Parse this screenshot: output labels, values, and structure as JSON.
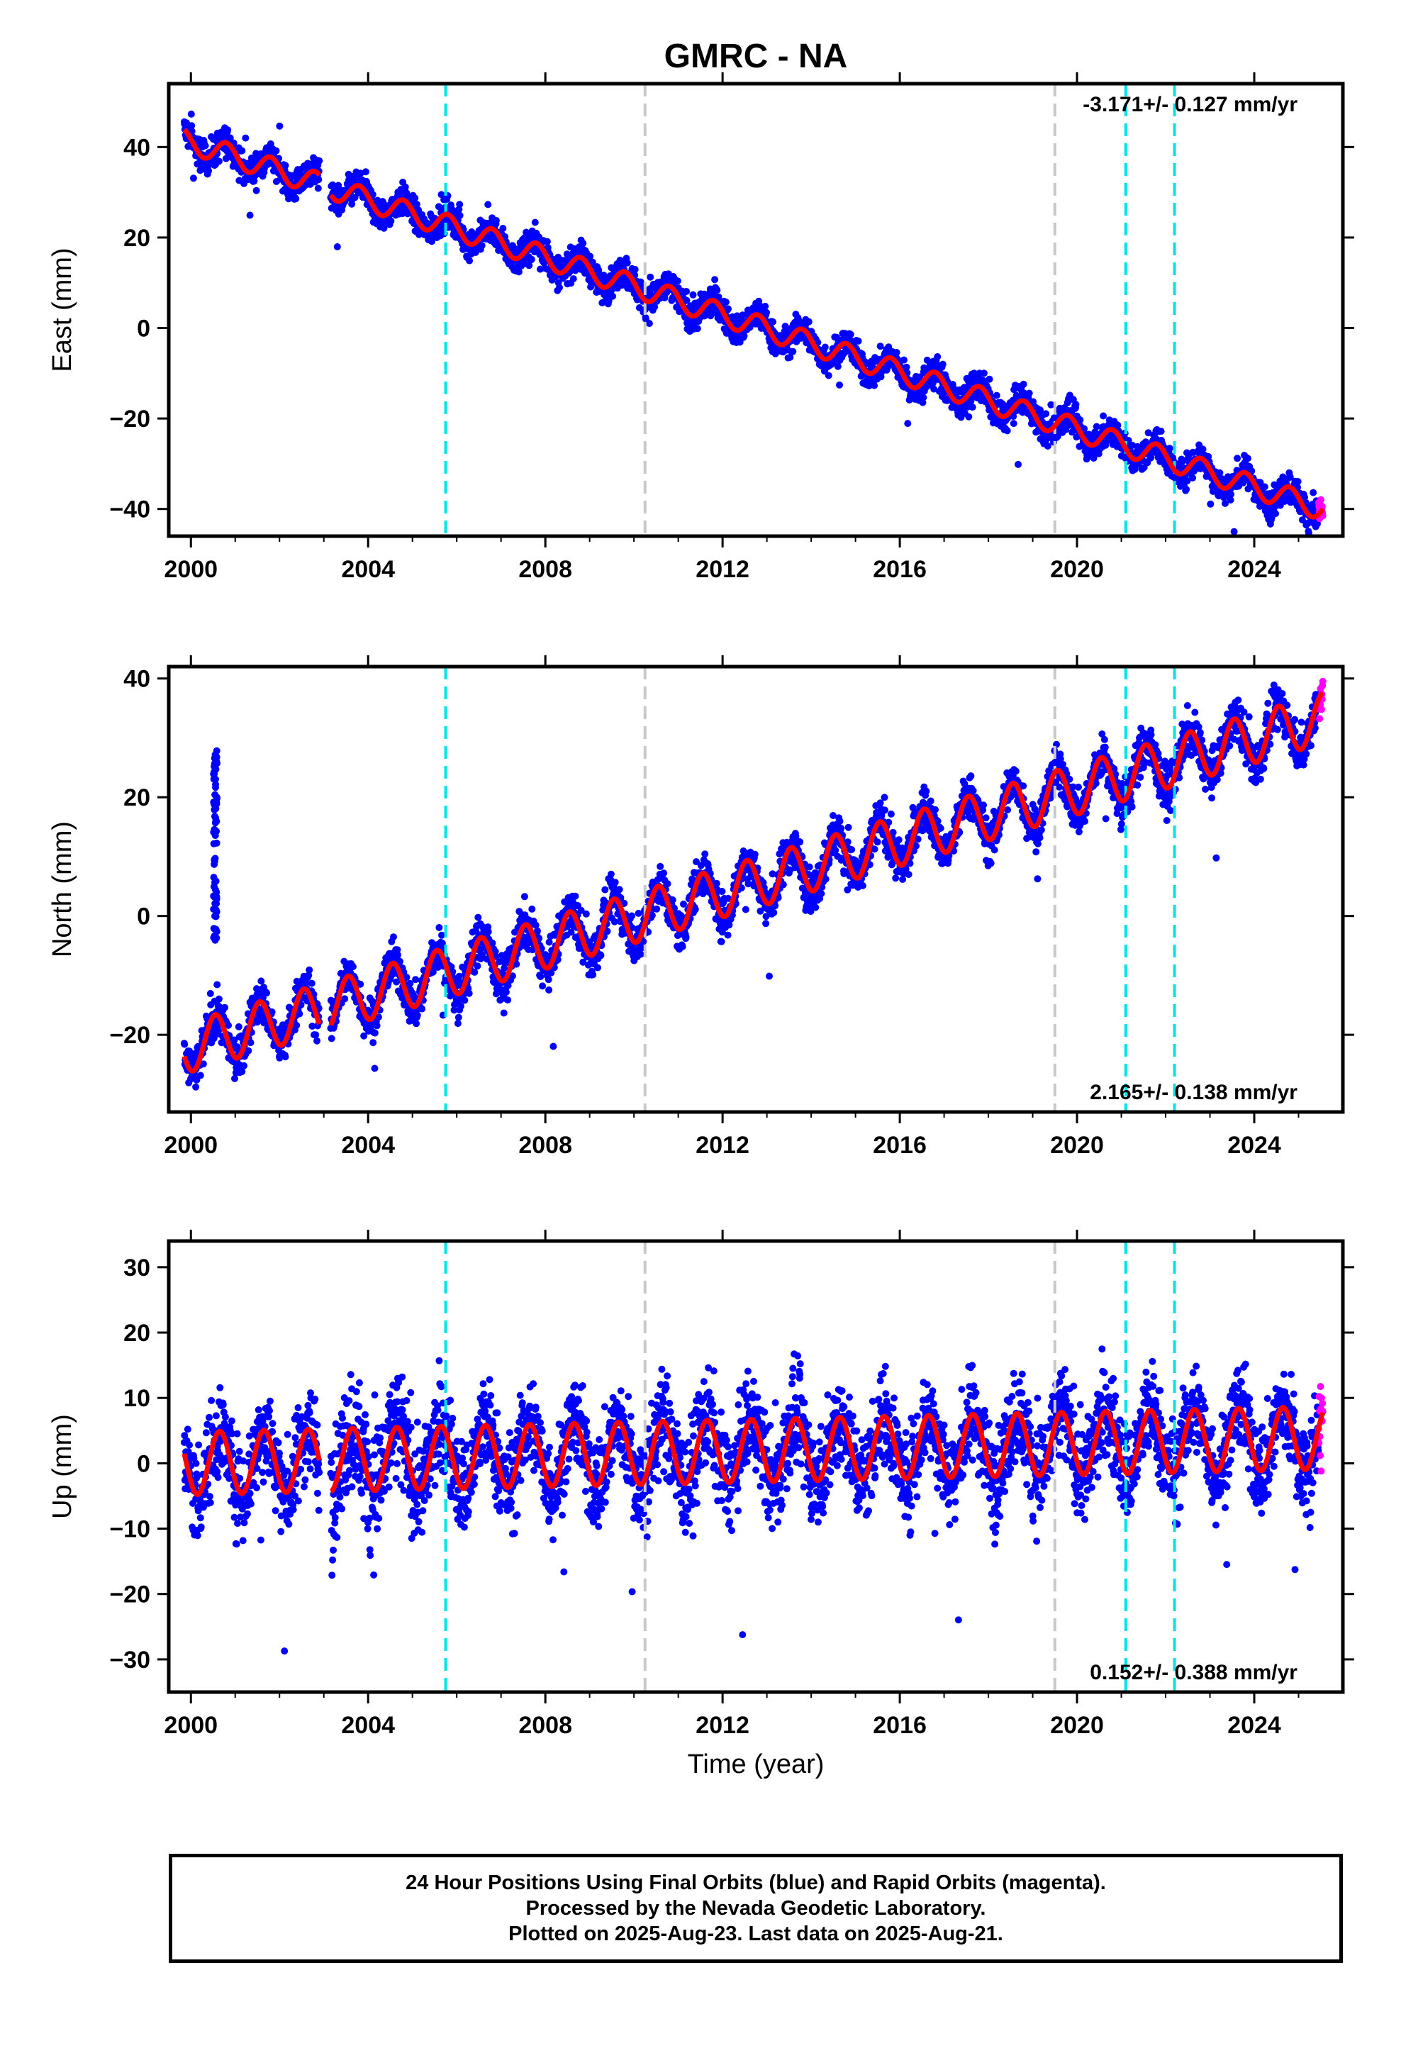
{
  "title": "GMRC - NA",
  "xlabel": "Time (year)",
  "x_ticks": [
    "2000",
    "2004",
    "2008",
    "2012",
    "2016",
    "2020",
    "2024"
  ],
  "colors": {
    "final_orbits": "#0000ff",
    "rapid_orbits": "#ff00ff",
    "model_fit": "#ff0000",
    "event_cyan": "#00e5e5",
    "event_gray": "#c8c8c8"
  },
  "event_lines": [
    {
      "year": 2005.75,
      "color": "cyan"
    },
    {
      "year": 2010.25,
      "color": "gray"
    },
    {
      "year": 2019.5,
      "color": "gray"
    },
    {
      "year": 2021.1,
      "color": "cyan"
    },
    {
      "year": 2022.2,
      "color": "cyan"
    }
  ],
  "chart_data": [
    {
      "type": "scatter",
      "component": "east",
      "ylabel": "East (mm)",
      "rate": "-3.171+/- 0.127 mm/yr",
      "xlim": [
        1999.5,
        2026.0
      ],
      "ylim": [
        -46,
        54
      ],
      "y_ticks": [
        "40",
        "20",
        "0",
        "−20",
        "−40"
      ],
      "y_tick_values": [
        40,
        20,
        0,
        -20,
        -40
      ],
      "data_start": 1999.85,
      "data_end": 2025.55,
      "rapid_start": 2025.45,
      "gaps": [
        [
          2002.9,
          2003.15
        ]
      ],
      "model": {
        "ref_year": 2000.0,
        "offset": 41.0,
        "trend": -3.171,
        "annual_amp": 2.5,
        "phase": 0.55
      },
      "fit_end": 2025.55,
      "scatter_spread": 2.4
    },
    {
      "type": "scatter",
      "component": "north",
      "ylabel": "North (mm)",
      "rate": "2.165+/- 0.138 mm/yr",
      "xlim": [
        1999.5,
        2026.0
      ],
      "ylim": [
        -33,
        42
      ],
      "y_ticks": [
        "40",
        "20",
        "0",
        "−20"
      ],
      "y_tick_values": [
        40,
        20,
        0,
        -20
      ],
      "data_start": 1999.85,
      "data_end": 2025.55,
      "rapid_start": 2025.45,
      "gaps": [
        [
          2002.9,
          2003.15
        ]
      ],
      "model": {
        "ref_year": 2000.0,
        "offset": -22.0,
        "trend": 2.165,
        "annual_amp": 4.2,
        "phase": 0.3
      },
      "fit_end": 2025.55,
      "scatter_spread": 2.6,
      "outlier_burst": {
        "x": 2000.55,
        "y_min": -5,
        "y_max": 28
      }
    },
    {
      "type": "scatter",
      "component": "up",
      "ylabel": "Up (mm)",
      "rate": "0.152+/- 0.388 mm/yr",
      "xlim": [
        1999.5,
        2026.0
      ],
      "ylim": [
        -35,
        34
      ],
      "y_ticks": [
        "30",
        "20",
        "10",
        "0",
        "−10",
        "−20",
        "−30"
      ],
      "y_tick_values": [
        30,
        20,
        10,
        0,
        -10,
        -20,
        -30
      ],
      "data_start": 1999.85,
      "data_end": 2025.55,
      "rapid_start": 2025.45,
      "gaps": [
        [
          2002.9,
          2003.15
        ]
      ],
      "model": {
        "ref_year": 2000.0,
        "offset": 0.0,
        "trend": 0.152,
        "annual_amp": 4.8,
        "phase": 0.4
      },
      "fit_end": 2025.55,
      "scatter_spread": 5.2
    }
  ],
  "footer": {
    "line1": "24 Hour Positions Using Final Orbits (blue) and Rapid Orbits (magenta).",
    "line2": "Processed by the Nevada Geodetic Laboratory.",
    "line3": "Plotted on 2025-Aug-23. Last data on 2025-Aug-21."
  }
}
